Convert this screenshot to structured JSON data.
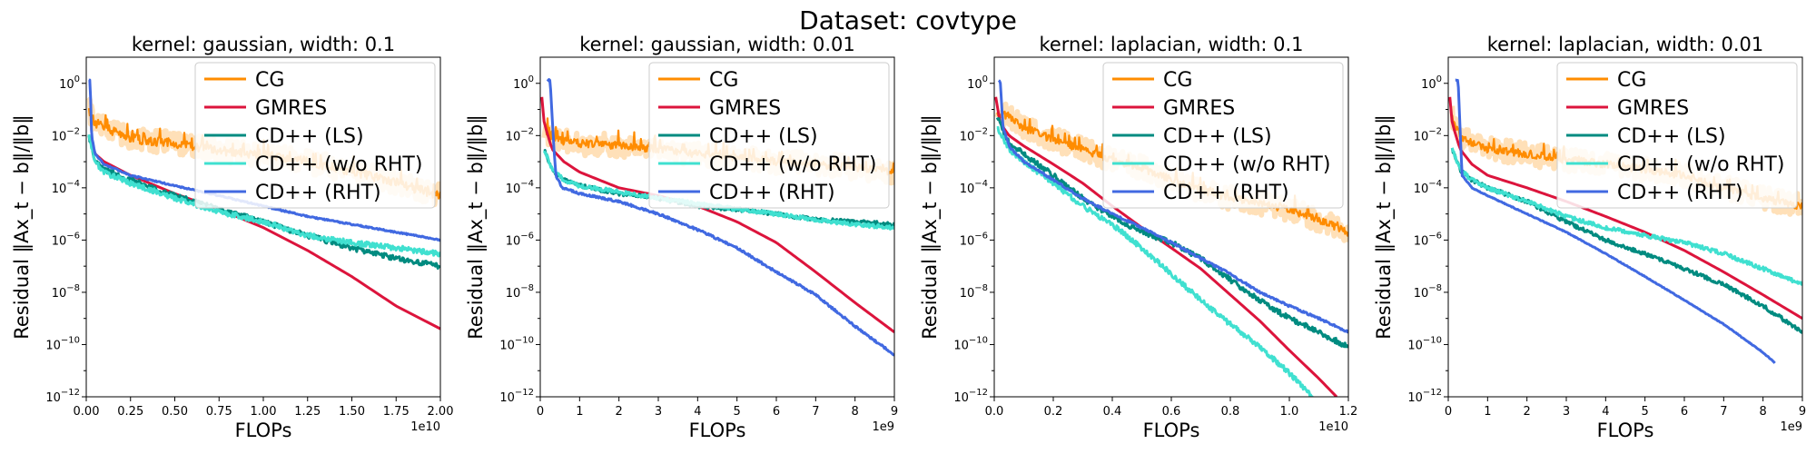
{
  "figure_title": "Dataset: covtype",
  "legend_labels": [
    "CG",
    "GMRES",
    "CD++ (LS)",
    "CD++ (w/o RHT)",
    "CD++ (RHT)"
  ],
  "colors": {
    "CG": "#ff8c00",
    "GMRES": "#dc143c",
    "CD++ (LS)": "#008b80",
    "CD++ (w/o RHT)": "#40e0d0",
    "CD++ (RHT)": "#4169e1",
    "CG_band": "#ffe0b8"
  },
  "chart_data": [
    {
      "type": "line",
      "title": "kernel: gaussian, width: 0.1",
      "xlabel": "FLOPs",
      "ylabel": "Residual ‖Ax_t − b‖/‖b‖",
      "x_offset_text": "1e10",
      "xlim": [
        0,
        20000000000
      ],
      "x_scale_factor": 10000000000,
      "yscale": "log",
      "ylim": [
        1e-12,
        10
      ],
      "x_ticks": [
        0,
        2500000000,
        5000000000,
        7500000000,
        10000000000,
        12500000000,
        15000000000,
        17500000000,
        20000000000
      ],
      "x_tick_labels": [
        "0.00",
        "0.25",
        "0.50",
        "0.75",
        "1.00",
        "1.25",
        "1.50",
        "1.75",
        "2.00"
      ],
      "y_tick_exponents": [
        0,
        -2,
        -4,
        -6,
        -8,
        -10,
        -12
      ],
      "legend": "top-right",
      "series": [
        {
          "name": "CG",
          "x": [
            150000000,
            500000000,
            1000000000,
            2000000000,
            3000000000,
            5000000000,
            7000000000,
            9000000000,
            11000000000,
            12500000000,
            14000000000,
            16000000000,
            18000000000,
            20000000000
          ],
          "y": [
            0.1,
            0.03,
            0.02,
            0.01,
            0.007,
            0.005,
            0.003,
            0.002,
            0.0015,
            0.001,
            0.0006,
            0.0003,
            0.00012,
            5e-05
          ],
          "noise": 0.35
        },
        {
          "name": "GMRES",
          "x": [
            150000000,
            500000000,
            1000000000,
            2500000000,
            5000000000,
            7500000000,
            10000000000,
            12500000000,
            15000000000,
            17500000000,
            20000000000
          ],
          "y": [
            0.01,
            0.002,
            0.001,
            0.0003,
            6e-05,
            1.5e-05,
            3e-06,
            4e-07,
            4e-08,
            3e-09,
            4e-10
          ],
          "noise": 0
        },
        {
          "name": "CD++ (LS)",
          "x": [
            150000000,
            500000000,
            1000000000,
            2500000000,
            5000000000,
            7500000000,
            10000000000,
            12500000000,
            15000000000,
            17500000000,
            20000000000
          ],
          "y": [
            0.01,
            0.001,
            0.0005,
            0.0002,
            5e-05,
            1.5e-05,
            5e-06,
            1.5e-06,
            5e-07,
            2e-07,
            1e-07
          ],
          "noise": 0.2
        },
        {
          "name": "CD++ (w/o RHT)",
          "x": [
            150000000,
            500000000,
            1000000000,
            2500000000,
            5000000000,
            7500000000,
            10000000000,
            12500000000,
            15000000000,
            17500000000,
            20000000000
          ],
          "y": [
            0.01,
            0.001,
            0.0004,
            0.00015,
            4e-05,
            1.2e-05,
            5e-06,
            1.5e-06,
            8e-07,
            5e-07,
            3e-07
          ],
          "noise": 0.2
        },
        {
          "name": "CD++ (RHT)",
          "x": [
            150000000,
            220000000,
            300000000,
            500000000,
            1000000000,
            2500000000,
            5000000000,
            7500000000,
            10000000000,
            12500000000,
            15000000000,
            17500000000,
            20000000000
          ],
          "y": [
            1.3,
            1.3,
            0.01,
            0.002,
            0.0008,
            0.0003,
            0.00012,
            5e-05,
            2e-05,
            8e-06,
            4e-06,
            2e-06,
            1e-06
          ],
          "noise": 0.05
        }
      ]
    },
    {
      "type": "line",
      "title": "kernel: gaussian, width: 0.01",
      "xlabel": "FLOPs",
      "ylabel": "Residual ‖Ax_t − b‖/‖b‖",
      "x_offset_text": "1e9",
      "xlim": [
        0,
        9000000000
      ],
      "x_scale_factor": 1000000000,
      "yscale": "log",
      "ylim": [
        1e-12,
        10
      ],
      "x_ticks": [
        0,
        1000000000,
        2000000000,
        3000000000,
        4000000000,
        5000000000,
        6000000000,
        7000000000,
        8000000000,
        9000000000
      ],
      "x_tick_labels": [
        "0",
        "1",
        "2",
        "3",
        "4",
        "5",
        "6",
        "7",
        "8",
        "9"
      ],
      "y_tick_exponents": [
        0,
        -2,
        -4,
        -6,
        -8,
        -10,
        -12
      ],
      "legend": "top-right",
      "series": [
        {
          "name": "CG",
          "x": [
            100000000,
            300000000,
            600000000,
            1000000000,
            2000000000,
            3000000000,
            4000000000,
            5000000000,
            6000000000,
            7000000000,
            8000000000,
            9000000000
          ],
          "y": [
            0.02,
            0.008,
            0.006,
            0.005,
            0.004,
            0.003,
            0.002,
            0.0015,
            0.001,
            0.0008,
            0.0006,
            0.0004
          ],
          "noise": 0.3
        },
        {
          "name": "GMRES",
          "x": [
            40000000,
            100000000,
            300000000,
            600000000,
            1000000000,
            2000000000,
            3000000000,
            4000000000,
            5000000000,
            6000000000,
            7000000000,
            8000000000,
            9000000000
          ],
          "y": [
            0.3,
            0.03,
            0.003,
            0.001,
            0.0004,
            0.0001,
            5e-05,
            2e-05,
            5e-06,
            8e-07,
            6e-08,
            4e-09,
            3e-10
          ],
          "noise": 0
        },
        {
          "name": "CD++ (LS)",
          "x": [
            100000000,
            300000000,
            600000000,
            1000000000,
            2000000000,
            3000000000,
            4000000000,
            5000000000,
            6000000000,
            7000000000,
            8000000000,
            9000000000
          ],
          "y": [
            0.003,
            0.0005,
            0.0002,
            0.00012,
            6e-05,
            4e-05,
            2e-05,
            1.5e-05,
            1e-05,
            6e-06,
            5e-06,
            4e-06
          ],
          "noise": 0.15
        },
        {
          "name": "CD++ (w/o RHT)",
          "x": [
            100000000,
            300000000,
            600000000,
            1000000000,
            2000000000,
            3000000000,
            4000000000,
            5000000000,
            6000000000,
            7000000000,
            8000000000,
            9000000000
          ],
          "y": [
            0.003,
            0.0005,
            0.0002,
            0.00012,
            7e-05,
            4e-05,
            2.5e-05,
            1.5e-05,
            1e-05,
            6e-06,
            4e-06,
            3e-06
          ],
          "noise": 0.15
        },
        {
          "name": "CD++ (RHT)",
          "x": [
            180000000,
            250000000,
            350000000,
            400000000,
            550000000,
            1000000000,
            2000000000,
            3000000000,
            4000000000,
            5000000000,
            6000000000,
            7000000000,
            8000000000,
            9000000000
          ],
          "y": [
            1.3,
            1.3,
            0.003,
            0.0003,
            0.0001,
            6e-05,
            3e-05,
            1e-05,
            2.5e-06,
            5e-07,
            6e-08,
            8e-09,
            5e-10,
            4e-11
          ],
          "noise": 0.08
        }
      ]
    },
    {
      "type": "line",
      "title": "kernel: laplacian, width: 0.1",
      "xlabel": "FLOPs",
      "ylabel": "Residual ‖Ax_t − b‖/‖b‖",
      "x_offset_text": "1e10",
      "xlim": [
        0,
        12000000000
      ],
      "x_scale_factor": 10000000000,
      "yscale": "log",
      "ylim": [
        1e-12,
        10
      ],
      "x_ticks": [
        0,
        2000000000,
        4000000000,
        6000000000,
        8000000000,
        10000000000,
        12000000000
      ],
      "x_tick_labels": [
        "0.0",
        "0.2",
        "0.4",
        "0.6",
        "0.8",
        "1.0",
        "1.2"
      ],
      "y_tick_exponents": [
        0,
        -2,
        -4,
        -6,
        -8,
        -10,
        -12
      ],
      "legend": "top-right",
      "series": [
        {
          "name": "CG",
          "x": [
            100000000,
            500000000,
            1000000000,
            2000000000,
            3000000000,
            4000000000,
            5000000000,
            6000000000,
            7000000000,
            8000000000,
            9000000000,
            10000000000,
            11000000000,
            12000000000
          ],
          "y": [
            0.08,
            0.05,
            0.02,
            0.007,
            0.003,
            0.0012,
            0.0006,
            0.0002,
            8e-05,
            4e-05,
            2.5e-05,
            1.5e-05,
            6e-06,
            2e-06
          ],
          "noise": 0.3
        },
        {
          "name": "GMRES",
          "x": [
            50000000,
            200000000,
            500000000,
            1000000000,
            2000000000,
            3000000000,
            4000000000,
            5000000000,
            6000000000,
            7000000000,
            8000000000,
            9000000000,
            10000000000,
            11000000000,
            11600000000
          ],
          "y": [
            0.3,
            0.03,
            0.01,
            0.004,
            0.0008,
            0.00015,
            2e-05,
            3e-06,
            5e-07,
            8e-08,
            8e-09,
            8e-10,
            6e-11,
            5e-12,
            1e-12
          ],
          "noise": 0
        },
        {
          "name": "CD++ (LS)",
          "x": [
            100000000,
            500000000,
            1000000000,
            2000000000,
            3000000000,
            4000000000,
            5000000000,
            6000000000,
            7000000000,
            8000000000,
            9000000000,
            10000000000,
            11000000000,
            12000000000
          ],
          "y": [
            0.05,
            0.005,
            0.002,
            0.0003,
            4e-05,
            8e-06,
            2e-06,
            8e-07,
            2e-07,
            3e-08,
            5e-09,
            1e-09,
            3e-10,
            8e-11
          ],
          "noise": 0.2
        },
        {
          "name": "CD++ (w/o RHT)",
          "x": [
            100000000,
            500000000,
            1000000000,
            2000000000,
            3000000000,
            4000000000,
            5000000000,
            6000000000,
            7000000000,
            8000000000,
            9000000000,
            10000000000,
            10800000000
          ],
          "y": [
            0.02,
            0.003,
            0.001,
            0.00015,
            2e-05,
            4e-06,
            5e-07,
            5e-08,
            5e-09,
            6e-10,
            8e-11,
            8e-12,
            1e-12
          ],
          "noise": 0.2
        },
        {
          "name": "CD++ (RHT)",
          "x": [
            150000000,
            200000000,
            300000000,
            500000000,
            1000000000,
            2000000000,
            3000000000,
            4000000000,
            5000000000,
            6000000000,
            7000000000,
            8000000000,
            9000000000,
            10000000000,
            11000000000,
            12000000000
          ],
          "y": [
            1.3,
            1.3,
            0.02,
            0.004,
            0.001,
            0.0002,
            4e-05,
            1e-05,
            3e-06,
            8e-07,
            2e-07,
            5e-08,
            1e-08,
            3e-09,
            1e-09,
            3e-10
          ],
          "noise": 0.08
        }
      ]
    },
    {
      "type": "line",
      "title": "kernel: laplacian, width: 0.01",
      "xlabel": "FLOPs",
      "ylabel": "Residual ‖Ax_t − b‖/‖b‖",
      "x_offset_text": "1e9",
      "xlim": [
        0,
        9000000000
      ],
      "x_scale_factor": 1000000000,
      "yscale": "log",
      "ylim": [
        1e-12,
        10
      ],
      "x_ticks": [
        0,
        1000000000,
        2000000000,
        3000000000,
        4000000000,
        5000000000,
        6000000000,
        7000000000,
        8000000000,
        9000000000
      ],
      "x_tick_labels": [
        "0",
        "1",
        "2",
        "3",
        "4",
        "5",
        "6",
        "7",
        "8",
        "9"
      ],
      "y_tick_exponents": [
        0,
        -2,
        -4,
        -6,
        -8,
        -10,
        -12
      ],
      "legend": "top-right",
      "series": [
        {
          "name": "CG",
          "x": [
            100000000,
            300000000,
            600000000,
            1000000000,
            2000000000,
            3000000000,
            4000000000,
            5000000000,
            6000000000,
            7000000000,
            8000000000,
            9000000000
          ],
          "y": [
            0.05,
            0.01,
            0.005,
            0.003,
            0.002,
            0.0012,
            0.0008,
            0.0005,
            0.0003,
            0.0001,
            4e-05,
            2e-05
          ],
          "noise": 0.3
        },
        {
          "name": "GMRES",
          "x": [
            40000000,
            100000000,
            300000000,
            600000000,
            1000000000,
            2000000000,
            3000000000,
            4000000000,
            5000000000,
            6000000000,
            7000000000,
            8000000000,
            9000000000
          ],
          "y": [
            0.3,
            0.03,
            0.003,
            0.0008,
            0.0003,
            0.0001,
            3e-05,
            8e-06,
            2e-06,
            4e-07,
            6e-08,
            8e-09,
            1e-09
          ],
          "noise": 0
        },
        {
          "name": "CD++ (LS)",
          "x": [
            100000000,
            300000000,
            600000000,
            1000000000,
            2000000000,
            3000000000,
            4000000000,
            5000000000,
            6000000000,
            7000000000,
            8000000000,
            9000000000
          ],
          "y": [
            0.003,
            0.0005,
            0.0002,
            0.0001,
            3e-05,
            5e-06,
            1e-06,
            3e-07,
            8e-08,
            2e-08,
            3e-09,
            3e-10
          ],
          "noise": 0.15
        },
        {
          "name": "CD++ (w/o RHT)",
          "x": [
            100000000,
            300000000,
            600000000,
            1000000000,
            2000000000,
            3000000000,
            4000000000,
            5000000000,
            6000000000,
            7000000000,
            8000000000,
            9000000000
          ],
          "y": [
            0.003,
            0.0005,
            0.0002,
            0.0001,
            3e-05,
            8e-06,
            3e-06,
            1.5e-06,
            8e-07,
            3e-07,
            8e-08,
            2e-08
          ],
          "noise": 0.15
        },
        {
          "name": "CD++ (RHT)",
          "x": [
            180000000,
            250000000,
            350000000,
            600000000,
            1000000000,
            2000000000,
            3000000000,
            4000000000,
            5000000000,
            6000000000,
            7000000000,
            8000000000,
            8300000000
          ],
          "y": [
            1.3,
            1.3,
            0.0003,
            0.0001,
            5e-05,
            1e-05,
            2e-06,
            3e-07,
            4e-08,
            5e-09,
            6e-10,
            5e-11,
            2e-11
          ],
          "noise": 0.03
        }
      ]
    }
  ]
}
